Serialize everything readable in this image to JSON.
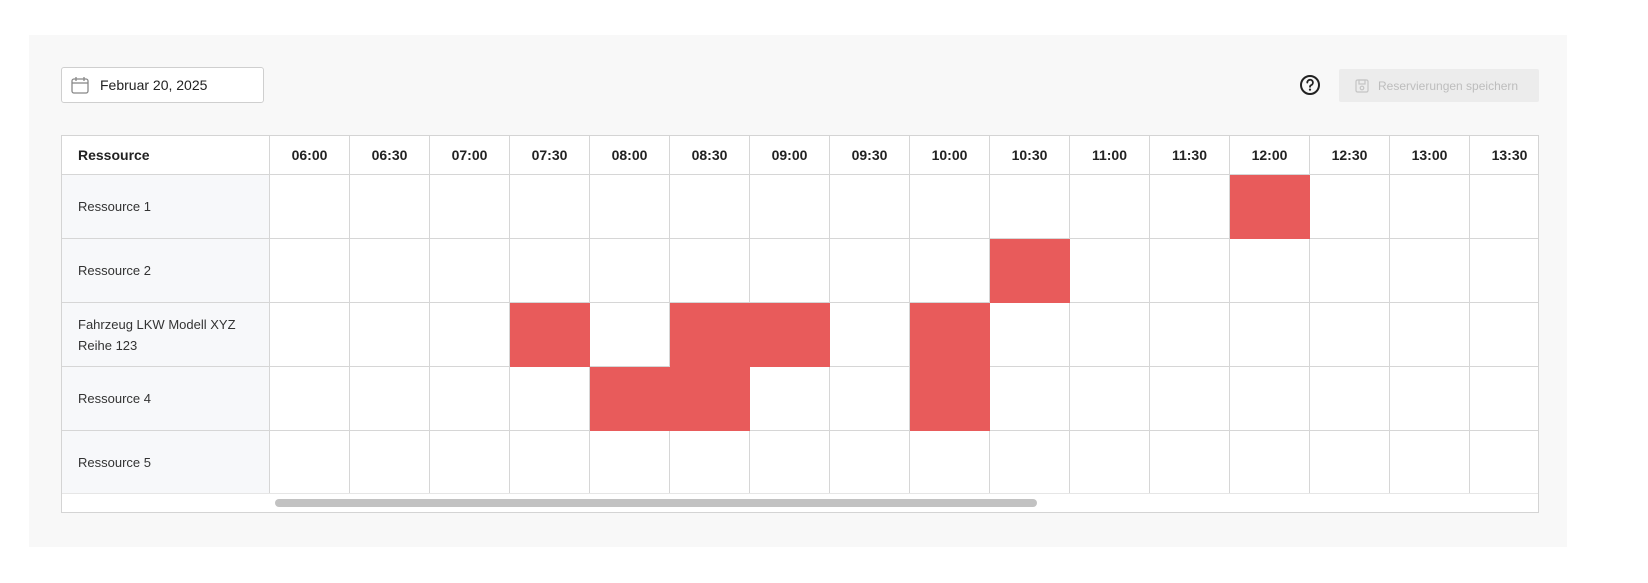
{
  "toolbar": {
    "date_value": "Februar 20, 2025",
    "save_label": "Reservierungen speichern",
    "calendar_icon": "calendar-icon",
    "help_icon": "help-circle-icon",
    "save_icon": "floppy-disk-icon"
  },
  "colors": {
    "booked": "#e85b5b",
    "row_header_bg": "#f7f8fa",
    "panel_bg": "#f8f8f8"
  },
  "grid": {
    "resource_header": "Ressource",
    "times": [
      "06:00",
      "06:30",
      "07:00",
      "07:30",
      "08:00",
      "08:30",
      "09:00",
      "09:30",
      "10:00",
      "10:30",
      "11:00",
      "11:30",
      "12:00",
      "12:30",
      "13:00",
      "13:30"
    ],
    "rows": [
      {
        "name": "Ressource 1",
        "booked": [
          "12:00"
        ]
      },
      {
        "name": "Ressource 2",
        "booked": [
          "10:30"
        ]
      },
      {
        "name": "Fahrzeug LKW Modell XYZ\nReihe 123",
        "booked": [
          "07:30",
          "08:30",
          "09:00",
          "10:00"
        ]
      },
      {
        "name": "Ressource 4",
        "booked": [
          "08:00",
          "08:30",
          "10:00"
        ]
      },
      {
        "name": "Ressource 5",
        "booked": []
      }
    ]
  }
}
